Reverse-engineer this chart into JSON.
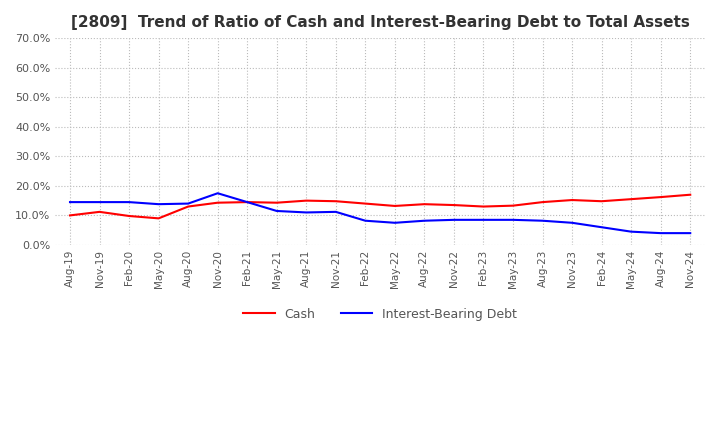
{
  "title": "[2809]  Trend of Ratio of Cash and Interest-Bearing Debt to Total Assets",
  "title_fontsize": 11,
  "ylim": [
    0.0,
    0.7
  ],
  "yticks": [
    0.0,
    0.1,
    0.2,
    0.3,
    0.4,
    0.5,
    0.6,
    0.7
  ],
  "x_labels": [
    "Aug-19",
    "Nov-19",
    "Feb-20",
    "May-20",
    "Aug-20",
    "Nov-20",
    "Feb-21",
    "May-21",
    "Aug-21",
    "Nov-21",
    "Feb-22",
    "May-22",
    "Aug-22",
    "Nov-22",
    "Feb-23",
    "May-23",
    "Aug-23",
    "Nov-23",
    "Feb-24",
    "May-24",
    "Aug-24",
    "Nov-24"
  ],
  "cash": [
    0.1,
    0.112,
    0.098,
    0.09,
    0.13,
    0.143,
    0.145,
    0.143,
    0.15,
    0.148,
    0.14,
    0.132,
    0.138,
    0.135,
    0.13,
    0.133,
    0.145,
    0.152,
    0.148,
    0.155,
    0.162,
    0.17
  ],
  "interest_bearing_debt": [
    0.145,
    0.145,
    0.145,
    0.138,
    0.14,
    0.175,
    0.145,
    0.115,
    0.11,
    0.112,
    0.082,
    0.075,
    0.082,
    0.085,
    0.085,
    0.085,
    0.082,
    0.075,
    0.06,
    0.045,
    0.04,
    0.04
  ],
  "cash_color": "#ff0000",
  "debt_color": "#0000ff",
  "grid_color": "#bbbbbb",
  "background_color": "#ffffff",
  "line_width": 1.5,
  "legend_cash": "Cash",
  "legend_debt": "Interest-Bearing Debt"
}
